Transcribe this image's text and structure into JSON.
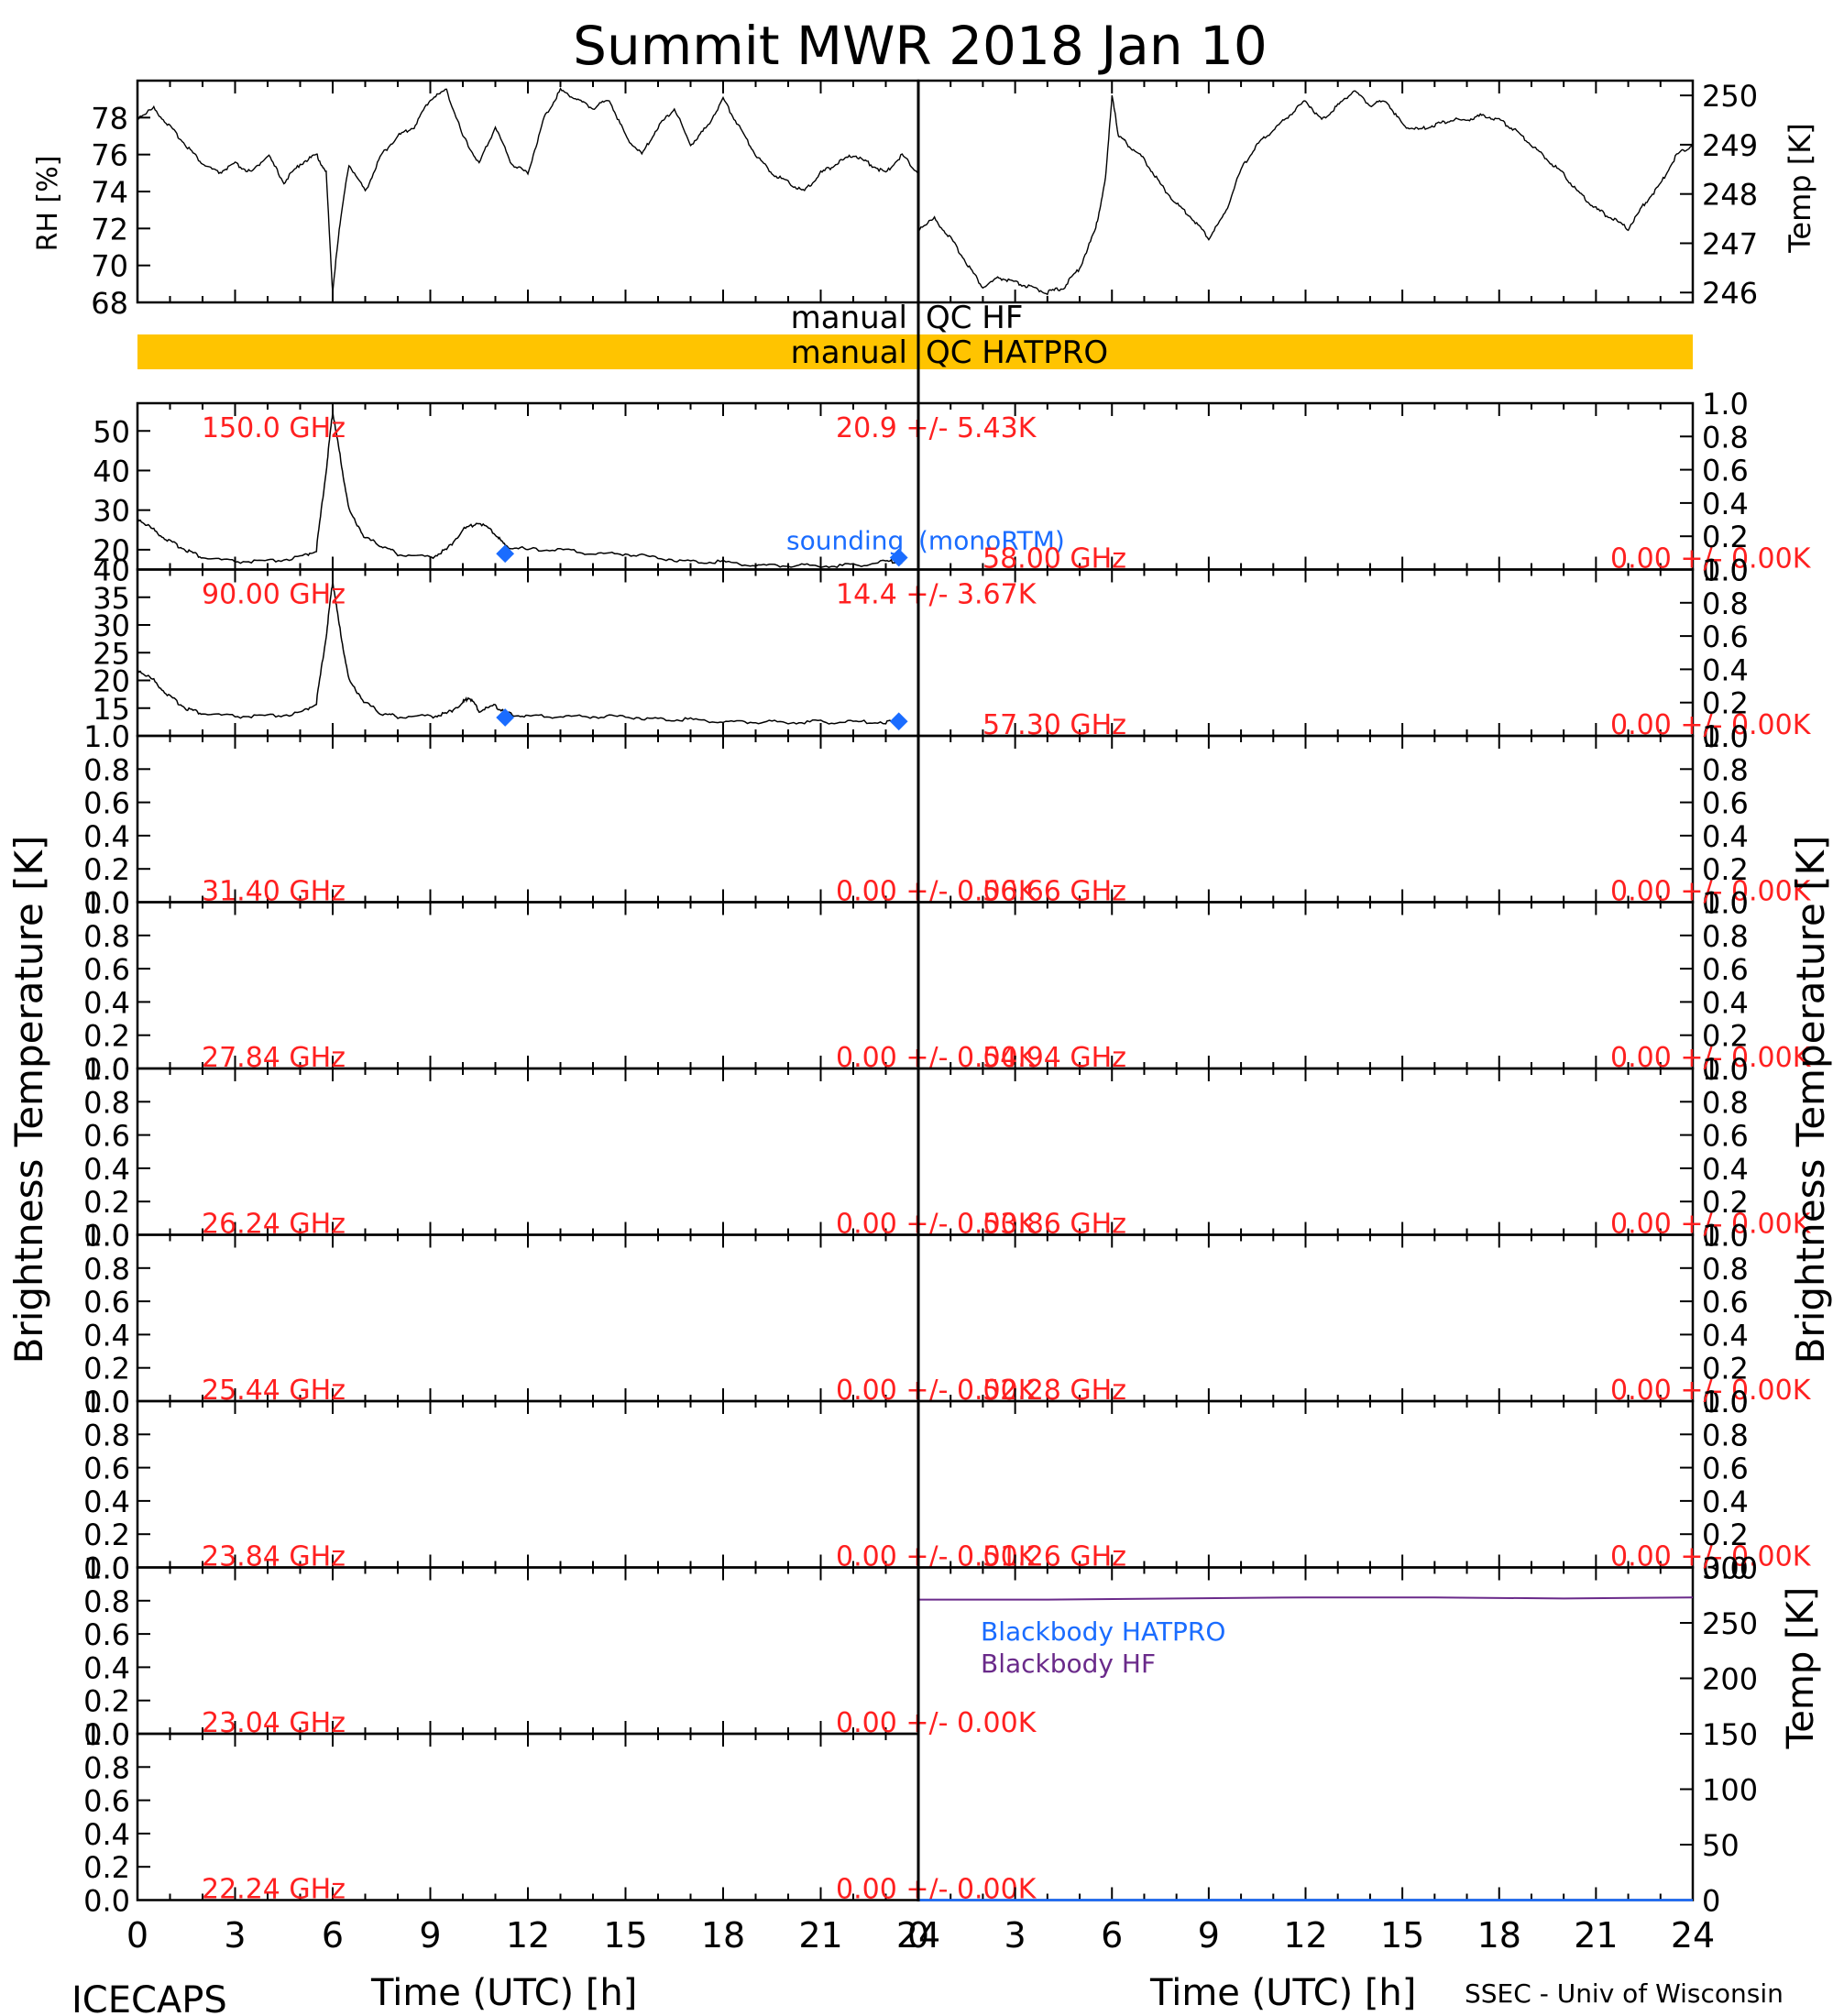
{
  "title": "Summit MWR 2018 Jan 10",
  "footer": {
    "left": "ICECAPS",
    "right": "SSEC - Univ of Wisconsin",
    "xlabel": "Time (UTC) [h]"
  },
  "colors": {
    "qc_bar": "#ffc400",
    "channel_label": "#ff2020",
    "sounding": "#1a6cff",
    "bb_hatpro": "#1a6cff",
    "bb_hf": "#6a2a8a",
    "trace": "#000000"
  },
  "chart_data": [
    {
      "type": "line",
      "panel": "met-rh",
      "ylabel": "RH [%]",
      "ylim": [
        68,
        80
      ],
      "yticks": [
        68,
        70,
        72,
        74,
        76,
        78
      ],
      "x": [
        0,
        0.5,
        1,
        1.5,
        2,
        2.5,
        3,
        3.5,
        4,
        4.5,
        5,
        5.5,
        5.8,
        6.0,
        6.2,
        6.5,
        7,
        7.5,
        8,
        8.5,
        9,
        9.5,
        10,
        10.5,
        11,
        11.5,
        12,
        12.5,
        13,
        13.5,
        14,
        14.5,
        15,
        15.5,
        16,
        16.5,
        17,
        17.5,
        18,
        18.5,
        19,
        19.5,
        20,
        20.5,
        21,
        21.5,
        22,
        22.5,
        23,
        23.5,
        24
      ],
      "y": [
        78,
        78.5,
        77.5,
        76.5,
        75.5,
        75,
        75.5,
        75,
        76,
        74.5,
        75.5,
        76,
        75,
        68.5,
        72,
        75.5,
        74,
        76,
        77,
        77.5,
        79,
        79.5,
        77,
        75.5,
        77.5,
        75.5,
        75,
        78,
        79.5,
        79,
        78.5,
        79,
        77,
        76,
        77.5,
        78.5,
        76.5,
        77.5,
        79,
        77.5,
        76,
        75,
        74.5,
        74,
        75,
        75.5,
        76,
        75.5,
        75,
        76,
        75
      ]
    },
    {
      "type": "line",
      "panel": "met-temp",
      "ylabel": "Temp [K]",
      "ylim": [
        245.8,
        250.3
      ],
      "yticks": [
        246,
        247,
        248,
        249,
        250
      ],
      "x": [
        0,
        0.5,
        1,
        1.5,
        2,
        2.5,
        3,
        3.5,
        4,
        4.5,
        5,
        5.5,
        5.8,
        6.0,
        6.2,
        6.5,
        7,
        7.5,
        8,
        8.5,
        9,
        9.5,
        10,
        10.5,
        11,
        11.5,
        12,
        12.5,
        13,
        13.5,
        14,
        14.5,
        15,
        15.5,
        16,
        16.5,
        17,
        17.5,
        18,
        18.5,
        19,
        19.5,
        20,
        20.5,
        21,
        21.5,
        22,
        22.5,
        23,
        23.5,
        24
      ],
      "y": [
        247.3,
        247.5,
        247.1,
        246.6,
        246.1,
        246.3,
        246.2,
        246.1,
        246.0,
        246.1,
        246.5,
        247.3,
        248.3,
        250.0,
        249.2,
        249.0,
        248.7,
        248.2,
        247.8,
        247.5,
        247.1,
        247.6,
        248.5,
        249.0,
        249.3,
        249.6,
        249.9,
        249.5,
        249.8,
        250.1,
        249.8,
        249.9,
        249.4,
        249.3,
        249.4,
        249.5,
        249.5,
        249.6,
        249.5,
        249.3,
        249.0,
        248.7,
        248.4,
        248.0,
        247.7,
        247.5,
        247.3,
        247.8,
        248.2,
        248.8,
        249.0
      ]
    },
    {
      "type": "line",
      "panel": "tb-150",
      "channel_label": "150.0 GHz",
      "stats_label": "20.9 +/- 5.43K",
      "ylim": [
        15,
        57
      ],
      "yticks": [
        20,
        30,
        40,
        50
      ],
      "x": [
        0,
        0.5,
        1,
        1.5,
        2,
        3,
        4,
        5,
        5.5,
        5.8,
        6.0,
        6.2,
        6.5,
        7,
        7.5,
        8,
        9,
        9.5,
        10,
        10.5,
        11,
        11.3,
        12,
        13,
        14,
        15,
        16,
        17,
        18,
        19,
        20,
        21,
        22,
        23,
        23.5
      ],
      "y": [
        28,
        25,
        22,
        20,
        18,
        17,
        17,
        18,
        20,
        40,
        55,
        45,
        30,
        23,
        21,
        19,
        18,
        20,
        25,
        27,
        24,
        21,
        20,
        20,
        19,
        19,
        18,
        17,
        17,
        16,
        16,
        16,
        16,
        17,
        17
      ],
      "sounding_name": "sounding",
      "sounding_model": "(monoRTM)",
      "sounding": [
        {
          "x": 11.3,
          "y": 19
        },
        {
          "x": 23.4,
          "y": 18
        }
      ]
    },
    {
      "type": "line",
      "panel": "tb-90",
      "channel_label": "90.00 GHz",
      "stats_label": "14.4 +/- 3.67K",
      "ylim": [
        10,
        40
      ],
      "yticks": [
        15,
        20,
        25,
        30,
        35,
        40
      ],
      "x": [
        0,
        0.5,
        1,
        1.5,
        2,
        3,
        4,
        5,
        5.5,
        5.8,
        6.0,
        6.2,
        6.5,
        7,
        7.5,
        8,
        9,
        9.5,
        10,
        10.2,
        10.5,
        11,
        11.3,
        12,
        13,
        14,
        15,
        16,
        17,
        18,
        19,
        20,
        21,
        22,
        23,
        23.5
      ],
      "y": [
        22,
        20,
        17,
        15,
        14,
        13.5,
        13.5,
        14,
        16,
        28,
        38,
        30,
        20,
        16,
        14,
        13.5,
        13.5,
        14,
        16,
        17,
        14.5,
        15.5,
        14,
        13.5,
        13.5,
        13.5,
        13.5,
        13,
        13,
        12.5,
        12.5,
        12.5,
        12.5,
        12.5,
        12.5,
        12.5
      ],
      "sounding": [
        {
          "x": 11.3,
          "y": 13.3
        },
        {
          "x": 23.4,
          "y": 12.6
        }
      ]
    },
    {
      "type": "line",
      "panel": "tb-empty",
      "channel_label": "58.00 GHz",
      "stats_label": "0.00 +/- 0.00K",
      "ylim": [
        0,
        1
      ],
      "values": []
    },
    {
      "type": "line",
      "panel": "tb-empty",
      "channel_label": "57.30 GHz",
      "stats_label": "0.00 +/- 0.00K",
      "ylim": [
        0,
        1
      ],
      "values": []
    },
    {
      "type": "line",
      "panel": "tb-empty",
      "channel_label": "31.40 GHz",
      "stats_label": "0.00 +/- 0.00K",
      "ylim": [
        0,
        1
      ],
      "values": []
    },
    {
      "type": "line",
      "panel": "tb-empty",
      "channel_label": "56.66 GHz",
      "stats_label": "0.00 +/- 0.00K",
      "ylim": [
        0,
        1
      ],
      "values": []
    },
    {
      "type": "line",
      "panel": "tb-empty",
      "channel_label": "27.84 GHz",
      "stats_label": "0.00 +/- 0.00K",
      "ylim": [
        0,
        1
      ],
      "values": []
    },
    {
      "type": "line",
      "panel": "tb-empty",
      "channel_label": "54.94 GHz",
      "stats_label": "0.00 +/- 0.00K",
      "ylim": [
        0,
        1
      ],
      "values": []
    },
    {
      "type": "line",
      "panel": "tb-empty",
      "channel_label": "26.24 GHz",
      "stats_label": "0.00 +/- 0.00K",
      "ylim": [
        0,
        1
      ],
      "values": []
    },
    {
      "type": "line",
      "panel": "tb-empty",
      "channel_label": "53.86 GHz",
      "stats_label": "0.00 +/- 0.00K",
      "ylim": [
        0,
        1
      ],
      "values": []
    },
    {
      "type": "line",
      "panel": "tb-empty",
      "channel_label": "25.44 GHz",
      "stats_label": "0.00 +/- 0.00K",
      "ylim": [
        0,
        1
      ],
      "values": []
    },
    {
      "type": "line",
      "panel": "tb-empty",
      "channel_label": "52.28 GHz",
      "stats_label": "0.00 +/- 0.00K",
      "ylim": [
        0,
        1
      ],
      "values": []
    },
    {
      "type": "line",
      "panel": "tb-empty",
      "channel_label": "23.84 GHz",
      "stats_label": "0.00 +/- 0.00K",
      "ylim": [
        0,
        1
      ],
      "values": []
    },
    {
      "type": "line",
      "panel": "tb-empty",
      "channel_label": "51.26 GHz",
      "stats_label": "0.00 +/- 0.00K",
      "ylim": [
        0,
        1
      ],
      "values": []
    },
    {
      "type": "line",
      "panel": "tb-empty",
      "channel_label": "23.04 GHz",
      "stats_label": "0.00 +/- 0.00K",
      "ylim": [
        0,
        1
      ],
      "values": []
    },
    {
      "type": "line",
      "panel": "tb-empty",
      "channel_label": "22.24 GHz",
      "stats_label": "0.00 +/- 0.00K",
      "ylim": [
        0,
        1
      ],
      "values": []
    },
    {
      "type": "line",
      "panel": "blackbody",
      "ylabel": "Temp [K]",
      "ylim": [
        0,
        300
      ],
      "yticks": [
        0,
        50,
        100,
        150,
        200,
        250,
        300
      ],
      "series": [
        {
          "name": "Blackbody HATPRO",
          "x": [
            0,
            24
          ],
          "y": [
            0,
            0
          ]
        },
        {
          "name": "Blackbody HF",
          "x": [
            0,
            4,
            8,
            12,
            16,
            20,
            24
          ],
          "y": [
            271,
            271,
            272,
            273,
            273,
            272,
            273
          ]
        }
      ]
    }
  ],
  "shared": {
    "tb_ylabel": "Brightness Temperature [K]",
    "unit_ticks": [
      "0.0",
      "0.2",
      "0.4",
      "0.6",
      "0.8",
      "1.0"
    ],
    "xticks": [
      0,
      3,
      6,
      9,
      12,
      15,
      18,
      21,
      24
    ],
    "xlim": [
      0,
      24
    ],
    "qc": {
      "row1_left": "manual",
      "row1_right": "QC HF",
      "row2_left": "manual",
      "row2_right": "QC HATPRO"
    }
  }
}
